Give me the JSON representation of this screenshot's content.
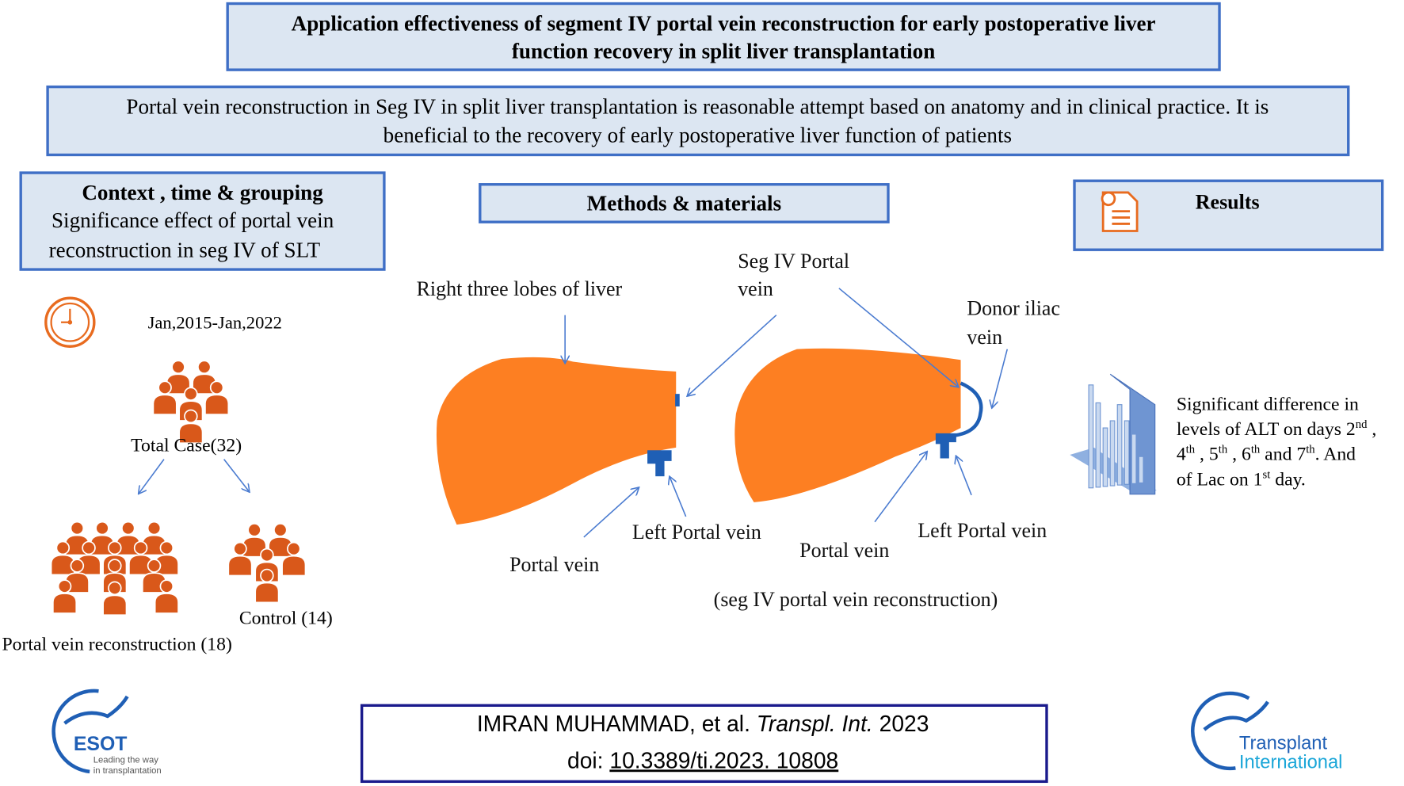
{
  "title": {
    "line1": "Application  effectiveness of segment IV portal vein reconstruction  for early postoperative liver",
    "line2": "function recovery in split liver transplantation"
  },
  "summary": {
    "line1": "Portal vein reconstruction in Seg IV in split liver transplantation  is reasonable  attempt based  on anatomy  and in clinical practice. It is",
    "line2": "beneficial  to the recovery  of early postoperative liver function of patients"
  },
  "context": {
    "heading": "Context , time & grouping",
    "line1": "Significance  effect of portal vein",
    "line2": "reconstruction  in seg IV of  SLT",
    "period": "Jan,2015-Jan,2022",
    "total": "Total Case(32)",
    "control": "Control (14)",
    "pvr": "Portal vein reconstruction (18)"
  },
  "methods": {
    "heading": "Methods  & materials",
    "right_lobes": "Right three lobes of liver",
    "seg4_a": "Seg IV Portal",
    "seg4_b": "vein",
    "donor_a": "Donor iliac",
    "donor_b": "vein",
    "left_pv_1": "Left Portal vein",
    "pv_1": "Portal vein",
    "pv_2": "Portal vein",
    "left_pv_2": "Left Portal vein",
    "caption": "(seg IV portal vein reconstruction)"
  },
  "results": {
    "heading": "Results",
    "l1": "Significant  difference  in",
    "l2a": "levels  of ALT on days 2",
    "l2s": "nd",
    "l2b": " ,",
    "l3a": "4",
    "l3s1": "th",
    "l3b": " , 5",
    "l3s2": "th",
    "l3c": " , 6",
    "l3s3": "th",
    "l3d": "  and 7",
    "l3s4": "th",
    "l3e": ". And",
    "l4a": "of  Lac on 1",
    "l4s": "st",
    "l4b": " day."
  },
  "citation": {
    "authors": "IMRAN MUHAMMAD, et al. ",
    "journal": "Transpl. Int.",
    "year": " 2023",
    "doi_label": "doi: ",
    "doi": "10.3389/ti.2023. 10808"
  },
  "logos": {
    "esot": "ESOT",
    "esot_tag1": "Leading the way",
    "esot_tag2": "in transplantation",
    "ti1": "Transplant",
    "ti2": "International"
  },
  "colors": {
    "box_fill": "#dce6f2",
    "box_border": "#3f6fc6",
    "liver": "#fd7f22",
    "people": "#d9581a",
    "vein": "#1f5fb5"
  }
}
